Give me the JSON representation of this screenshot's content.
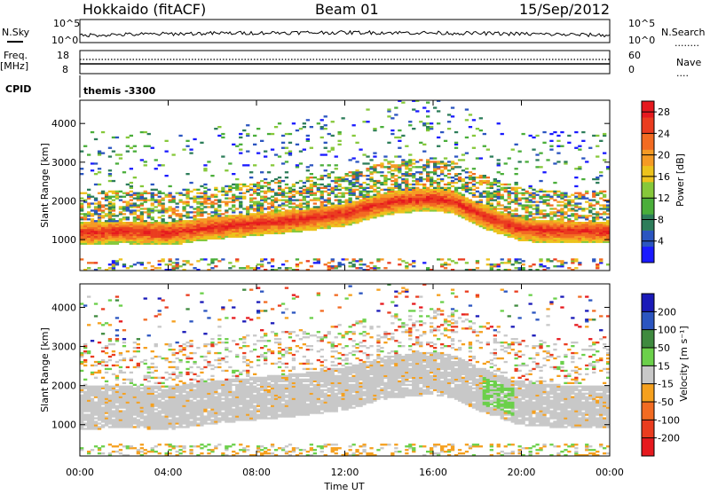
{
  "header": {
    "title": "Hokkaido (fitACF)",
    "beam": "Beam 01",
    "date": "15/Sep/2012"
  },
  "summary_panel": {
    "nsky_label": "N.Sky",
    "nsearch_label": "N.Search",
    "nsearch_line": "........",
    "left_ticks": [
      "10^5",
      "10^0"
    ],
    "right_ticks": [
      "10^5",
      "10^0"
    ],
    "freq_label": "Freq.",
    "freq_unit": "[MHz]",
    "freq_ticks": [
      "18",
      "8"
    ],
    "nave_label": "Nave",
    "nave_line": "....",
    "nave_ticks": [
      "60",
      "0"
    ],
    "cpid_label": "CPID",
    "cpid_value": "themis -3300"
  },
  "chart_data": [
    {
      "type": "heatmap",
      "name": "power",
      "ylabel": "Slant Range [km]",
      "xlabel": "",
      "ylim": [
        200,
        4600
      ],
      "xlim": [
        0,
        24
      ],
      "yticks": [
        "1000",
        "2000",
        "3000",
        "4000"
      ],
      "colorbar_label": "Power [dB]",
      "colorbar_ticks": [
        "4",
        "8",
        "12",
        "16",
        "20",
        "24",
        "28"
      ],
      "colorbar_range": [
        0,
        30
      ],
      "colorbar_colors": [
        "#1a1aff",
        "#2b55c0",
        "#2d7d5a",
        "#4aae3a",
        "#86c83a",
        "#ecc21c",
        "#f59a24",
        "#f26b22",
        "#ea3c1f",
        "#e6191e"
      ],
      "band_center_km": [
        [
          0,
          1150
        ],
        [
          2,
          1200
        ],
        [
          4,
          1150
        ],
        [
          6,
          1300
        ],
        [
          8,
          1400
        ],
        [
          10,
          1500
        ],
        [
          12,
          1650
        ],
        [
          14,
          1950
        ],
        [
          16,
          2050
        ],
        [
          17,
          1950
        ],
        [
          18,
          1650
        ],
        [
          19,
          1450
        ],
        [
          20,
          1250
        ],
        [
          22,
          1200
        ],
        [
          24,
          1200
        ]
      ]
    },
    {
      "type": "heatmap",
      "name": "velocity",
      "ylabel": "Slant Range [km]",
      "xlabel": "Time UT",
      "ylim": [
        200,
        4600
      ],
      "xlim": [
        0,
        24
      ],
      "yticks": [
        "1000",
        "2000",
        "3000",
        "4000"
      ],
      "xticks": [
        "00:00",
        "04:00",
        "08:00",
        "12:00",
        "16:00",
        "20:00",
        "00:00"
      ],
      "colorbar_label": "Velocity [m s⁻¹]",
      "colorbar_ticks": [
        "200",
        "100",
        "50",
        "15",
        "-15",
        "-50",
        "-100",
        "-200"
      ],
      "colorbar_colors": [
        "#1a1ab8",
        "#2b55c0",
        "#3f8a3f",
        "#6bd04a",
        "#c8c8c8",
        "#f5a01e",
        "#f26b22",
        "#ea3c1f",
        "#e6191e"
      ]
    }
  ]
}
